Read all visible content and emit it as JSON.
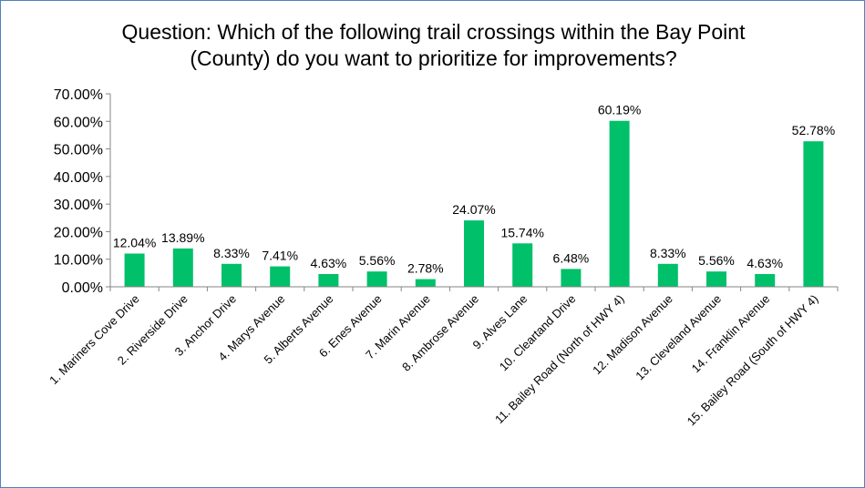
{
  "chart_data": {
    "type": "bar",
    "title_line1": "Question: Which of the following trail crossings within the Bay Point",
    "title_line2": "(County) do you want to prioritize for improvements?",
    "categories": [
      "1. Mariners Cove Drive",
      "2. Riverside Drive",
      "3. Anchor Drive",
      "4. Marys Avenue",
      "5. Alberts Avenue",
      "6. Enes Avenue",
      "7. Marin Avenue",
      "8. Ambrose Avenue",
      "9. Alves Lane",
      "10. Cleartand Drive",
      "11. Bailey Road (North of HWY 4)",
      "12. Madison Avenue",
      "13. Cleveland Avenue",
      "14. Franklin Avenue",
      "15. Bailey Road (South of HWY 4)"
    ],
    "values": [
      12.04,
      13.89,
      8.33,
      7.41,
      4.63,
      5.56,
      2.78,
      24.07,
      15.74,
      6.48,
      60.19,
      8.33,
      5.56,
      4.63,
      52.78
    ],
    "value_labels": [
      "12.04%",
      "13.89%",
      "8.33%",
      "7.41%",
      "4.63%",
      "5.56%",
      "2.78%",
      "24.07%",
      "15.74%",
      "6.48%",
      "60.19%",
      "8.33%",
      "5.56%",
      "4.63%",
      "52.78%"
    ],
    "ylim": [
      0,
      70
    ],
    "y_ticks": [
      "0.00%",
      "10.00%",
      "20.00%",
      "30.00%",
      "40.00%",
      "50.00%",
      "60.00%",
      "70.00%"
    ],
    "grid": false,
    "legend": "none",
    "bar_color": "#00c06a",
    "axis_color": "#868686"
  }
}
